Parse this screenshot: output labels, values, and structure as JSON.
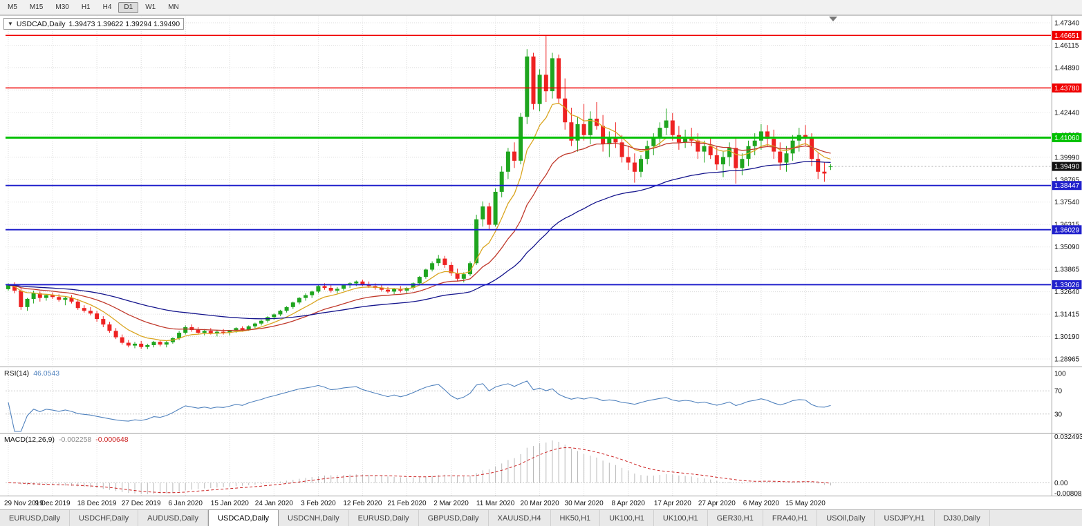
{
  "toolbar": {
    "timeframes": [
      "M5",
      "M15",
      "M30",
      "H1",
      "H4",
      "D1",
      "W1",
      "MN"
    ],
    "active": "D1"
  },
  "chart": {
    "one_click_arrow": "▼",
    "symbol_label": "USDCAD,Daily",
    "ohlc_label": "1.39473 1.39622 1.39294 1.39490"
  },
  "chart_data": {
    "type": "candlestick",
    "symbol": "USDCAD",
    "timeframe": "Daily",
    "title": "USDCAD,Daily",
    "ohlc_current": {
      "open": 1.39473,
      "high": 1.39622,
      "low": 1.39294,
      "close": 1.3949
    },
    "x_label_every": 7,
    "x_labels": [
      "29 Nov 2019",
      "9 Dec 2019",
      "18 Dec 2019",
      "27 Dec 2019",
      "6 Jan 2020",
      "15 Jan 2020",
      "24 Jan 2020",
      "3 Feb 2020",
      "12 Feb 2020",
      "21 Feb 2020",
      "2 Mar 2020",
      "11 Mar 2020",
      "20 Mar 2020",
      "30 Mar 2020",
      "8 Apr 2020",
      "17 Apr 2020",
      "27 Apr 2020",
      "6 May 2020",
      "15 May 2020"
    ],
    "price_axis": {
      "top": 1.4768,
      "bottom": 1.2855,
      "ticks": [
        "1.47340",
        "1.46115",
        "1.44890",
        "1.43665",
        "1.42440",
        "1.41215",
        "1.39990",
        "1.38765",
        "1.37540",
        "1.36315",
        "1.35090",
        "1.33865",
        "1.32640",
        "1.31415",
        "1.30190",
        "1.28965"
      ]
    },
    "hlines": [
      {
        "price": 1.46651,
        "label": "1.46651",
        "color": "#f00000",
        "width": 1.5
      },
      {
        "price": 1.4378,
        "label": "1.43780",
        "color": "#f00000",
        "width": 1.5
      },
      {
        "price": 1.4106,
        "label": "1.41060",
        "color": "#00c000",
        "width": 3
      },
      {
        "price": 1.38447,
        "label": "1.38447",
        "color": "#2020cc",
        "width": 2
      },
      {
        "price": 1.36029,
        "label": "1.36029",
        "color": "#2020cc",
        "width": 2
      },
      {
        "price": 1.33026,
        "label": "1.33026",
        "color": "#2020cc",
        "width": 2
      }
    ],
    "current_price": {
      "value": 1.3949,
      "label": "1.39490",
      "bg": "#111111"
    },
    "moving_averages": [
      {
        "name": "fast",
        "method": "ema",
        "period": 8,
        "color": "#daa520"
      },
      {
        "name": "medium",
        "method": "ema",
        "period": 20,
        "color": "#c0392b"
      },
      {
        "name": "slow",
        "method": "ema",
        "period": 50,
        "color": "#14148c"
      }
    ],
    "rsi": {
      "label_name": "RSI(14)",
      "label_value": "46.0543",
      "period": 14,
      "color": "#4f81bd",
      "levels": [
        70,
        30
      ],
      "axis_labels": [
        "100",
        "70",
        "30"
      ]
    },
    "macd": {
      "label_name": "MACD(12,26,9)",
      "label_value_main": "-0.002258",
      "label_value_signal": "-0.000648",
      "fast": 12,
      "slow": 26,
      "signal": 9,
      "axis_max": 0.032493,
      "axis_min": -0.008086,
      "axis_labels": [
        "0.032493",
        "0.00",
        "-0.008086"
      ],
      "hist_color": "#b8b8b8",
      "signal_color": "#cc2222"
    },
    "colors": {
      "up": "#1fa51f",
      "down": "#ee2222",
      "grid": "#dcdcdc",
      "background": "#ffffff"
    },
    "candles": [
      [
        1.3278,
        1.331,
        1.327,
        1.33
      ],
      [
        1.33,
        1.3315,
        1.3255,
        1.327
      ],
      [
        1.327,
        1.3285,
        1.3165,
        1.318
      ],
      [
        1.318,
        1.323,
        1.316,
        1.3225
      ],
      [
        1.3225,
        1.327,
        1.32,
        1.3255
      ],
      [
        1.3255,
        1.3265,
        1.321,
        1.323
      ],
      [
        1.323,
        1.325,
        1.3215,
        1.3245
      ],
      [
        1.3245,
        1.326,
        1.3225,
        1.3235
      ],
      [
        1.3235,
        1.325,
        1.321,
        1.322
      ],
      [
        1.322,
        1.324,
        1.319,
        1.323
      ],
      [
        1.323,
        1.3245,
        1.32,
        1.321
      ],
      [
        1.321,
        1.3225,
        1.3165,
        1.3175
      ],
      [
        1.3175,
        1.319,
        1.315,
        1.316
      ],
      [
        1.316,
        1.318,
        1.3135,
        1.3145
      ],
      [
        1.3145,
        1.316,
        1.31,
        1.3115
      ],
      [
        1.3115,
        1.313,
        1.307,
        1.3085
      ],
      [
        1.3085,
        1.31,
        1.304,
        1.305
      ],
      [
        1.305,
        1.3065,
        1.3005,
        1.3015
      ],
      [
        1.3015,
        1.303,
        1.2975,
        1.2985
      ],
      [
        1.2985,
        1.3,
        1.296,
        1.297
      ],
      [
        1.297,
        1.299,
        1.2955,
        1.298
      ],
      [
        1.298,
        1.2995,
        1.2952,
        1.2962
      ],
      [
        1.2962,
        1.298,
        1.295,
        1.2972
      ],
      [
        1.2972,
        1.2995,
        1.296,
        1.299
      ],
      [
        1.299,
        1.3,
        1.2965,
        1.2975
      ],
      [
        1.2975,
        1.2995,
        1.296,
        1.2988
      ],
      [
        1.2988,
        1.3015,
        1.298,
        1.301
      ],
      [
        1.301,
        1.305,
        1.3,
        1.304
      ],
      [
        1.304,
        1.308,
        1.303,
        1.307
      ],
      [
        1.307,
        1.3085,
        1.3045,
        1.3055
      ],
      [
        1.3055,
        1.307,
        1.303,
        1.304
      ],
      [
        1.304,
        1.306,
        1.3025,
        1.305
      ],
      [
        1.305,
        1.3065,
        1.303,
        1.3035
      ],
      [
        1.3035,
        1.3055,
        1.302,
        1.3045
      ],
      [
        1.3045,
        1.306,
        1.303,
        1.304
      ],
      [
        1.304,
        1.3055,
        1.3025,
        1.305
      ],
      [
        1.305,
        1.307,
        1.304,
        1.3065
      ],
      [
        1.3065,
        1.3075,
        1.3045,
        1.3055
      ],
      [
        1.3055,
        1.308,
        1.305,
        1.3075
      ],
      [
        1.3075,
        1.3095,
        1.3065,
        1.309
      ],
      [
        1.309,
        1.311,
        1.308,
        1.3105
      ],
      [
        1.3105,
        1.313,
        1.3095,
        1.3125
      ],
      [
        1.3125,
        1.3145,
        1.311,
        1.314
      ],
      [
        1.314,
        1.3165,
        1.313,
        1.316
      ],
      [
        1.316,
        1.3185,
        1.315,
        1.318
      ],
      [
        1.318,
        1.321,
        1.317,
        1.3205
      ],
      [
        1.3205,
        1.3235,
        1.3195,
        1.323
      ],
      [
        1.323,
        1.3255,
        1.3215,
        1.3245
      ],
      [
        1.3245,
        1.327,
        1.323,
        1.3265
      ],
      [
        1.3265,
        1.33,
        1.3255,
        1.3295
      ],
      [
        1.3295,
        1.331,
        1.3275,
        1.3285
      ],
      [
        1.3285,
        1.33,
        1.326,
        1.327
      ],
      [
        1.327,
        1.329,
        1.3255,
        1.328
      ],
      [
        1.328,
        1.3305,
        1.327,
        1.33
      ],
      [
        1.33,
        1.3315,
        1.3285,
        1.331
      ],
      [
        1.331,
        1.3325,
        1.3295,
        1.332
      ],
      [
        1.332,
        1.333,
        1.3295,
        1.3305
      ],
      [
        1.3305,
        1.332,
        1.3285,
        1.3295
      ],
      [
        1.3295,
        1.331,
        1.3275,
        1.3285
      ],
      [
        1.3285,
        1.33,
        1.3265,
        1.3275
      ],
      [
        1.3275,
        1.329,
        1.3255,
        1.3265
      ],
      [
        1.3265,
        1.3285,
        1.325,
        1.328
      ],
      [
        1.328,
        1.3295,
        1.326,
        1.327
      ],
      [
        1.327,
        1.329,
        1.3255,
        1.3285
      ],
      [
        1.3285,
        1.3315,
        1.3275,
        1.331
      ],
      [
        1.331,
        1.335,
        1.33,
        1.3345
      ],
      [
        1.3345,
        1.339,
        1.3335,
        1.3385
      ],
      [
        1.3385,
        1.343,
        1.3375,
        1.342
      ],
      [
        1.342,
        1.3465,
        1.3405,
        1.3445
      ],
      [
        1.3445,
        1.346,
        1.3395,
        1.341
      ],
      [
        1.341,
        1.3425,
        1.335,
        1.3365
      ],
      [
        1.3365,
        1.339,
        1.332,
        1.3335
      ],
      [
        1.3335,
        1.337,
        1.3315,
        1.336
      ],
      [
        1.336,
        1.343,
        1.335,
        1.342
      ],
      [
        1.342,
        1.3685,
        1.341,
        1.366
      ],
      [
        1.366,
        1.3758,
        1.362,
        1.373
      ],
      [
        1.373,
        1.375,
        1.36,
        1.363
      ],
      [
        1.363,
        1.383,
        1.362,
        1.381
      ],
      [
        1.381,
        1.395,
        1.378,
        1.392
      ],
      [
        1.392,
        1.405,
        1.388,
        1.403
      ],
      [
        1.403,
        1.408,
        1.394,
        1.398
      ],
      [
        1.398,
        1.424,
        1.396,
        1.422
      ],
      [
        1.422,
        1.459,
        1.418,
        1.455
      ],
      [
        1.455,
        1.457,
        1.426,
        1.429
      ],
      [
        1.429,
        1.448,
        1.425,
        1.445
      ],
      [
        1.445,
        1.4668,
        1.43,
        1.436
      ],
      [
        1.436,
        1.457,
        1.432,
        1.454
      ],
      [
        1.454,
        1.456,
        1.429,
        1.432
      ],
      [
        1.432,
        1.443,
        1.415,
        1.419
      ],
      [
        1.419,
        1.427,
        1.406,
        1.409
      ],
      [
        1.409,
        1.422,
        1.403,
        1.418
      ],
      [
        1.418,
        1.429,
        1.409,
        1.412
      ],
      [
        1.412,
        1.425,
        1.407,
        1.421
      ],
      [
        1.421,
        1.43,
        1.415,
        1.417
      ],
      [
        1.417,
        1.423,
        1.403,
        1.407
      ],
      [
        1.407,
        1.414,
        1.4,
        1.411
      ],
      [
        1.411,
        1.419,
        1.405,
        1.408
      ],
      [
        1.408,
        1.412,
        1.397,
        1.4
      ],
      [
        1.4,
        1.406,
        1.393,
        1.397
      ],
      [
        1.397,
        1.402,
        1.386,
        1.392
      ],
      [
        1.392,
        1.401,
        1.389,
        1.399
      ],
      [
        1.399,
        1.409,
        1.396,
        1.406
      ],
      [
        1.406,
        1.413,
        1.401,
        1.411
      ],
      [
        1.411,
        1.419,
        1.406,
        1.416
      ],
      [
        1.416,
        1.4265,
        1.412,
        1.42
      ],
      [
        1.42,
        1.424,
        1.409,
        1.412
      ],
      [
        1.412,
        1.417,
        1.404,
        1.408
      ],
      [
        1.408,
        1.415,
        1.405,
        1.411
      ],
      [
        1.411,
        1.416,
        1.406,
        1.409
      ],
      [
        1.409,
        1.413,
        1.399,
        1.403
      ],
      [
        1.403,
        1.409,
        1.397,
        1.406
      ],
      [
        1.406,
        1.411,
        1.399,
        1.401
      ],
      [
        1.401,
        1.406,
        1.393,
        1.396
      ],
      [
        1.396,
        1.403,
        1.389,
        1.4
      ],
      [
        1.4,
        1.408,
        1.395,
        1.405
      ],
      [
        1.405,
        1.411,
        1.3855,
        1.394
      ],
      [
        1.394,
        1.402,
        1.39,
        1.399
      ],
      [
        1.399,
        1.409,
        1.395,
        1.406
      ],
      [
        1.406,
        1.413,
        1.401,
        1.409
      ],
      [
        1.409,
        1.418,
        1.404,
        1.414
      ],
      [
        1.414,
        1.4175,
        1.406,
        1.41
      ],
      [
        1.41,
        1.415,
        1.399,
        1.403
      ],
      [
        1.403,
        1.408,
        1.393,
        1.397
      ],
      [
        1.397,
        1.406,
        1.392,
        1.402
      ],
      [
        1.402,
        1.412,
        1.398,
        1.409
      ],
      [
        1.409,
        1.416,
        1.403,
        1.412
      ],
      [
        1.412,
        1.4175,
        1.406,
        1.411
      ],
      [
        1.411,
        1.413,
        1.395,
        1.399
      ],
      [
        1.399,
        1.402,
        1.388,
        1.392
      ],
      [
        1.392,
        1.397,
        1.3865,
        1.391
      ],
      [
        1.39473,
        1.39622,
        1.39294,
        1.3949
      ]
    ]
  },
  "tabs": {
    "active_index": 3,
    "items": [
      "EURUSD,Daily",
      "USDCHF,Daily",
      "AUDUSD,Daily",
      "USDCAD,Daily",
      "USDCNH,Daily",
      "EURUSD,Daily",
      "GBPUSD,Daily",
      "XAUUSD,H4",
      "HK50,H1",
      "UK100,H1",
      "UK100,H1",
      "GER30,H1",
      "FRA40,H1",
      "USOil,Daily",
      "USDJPY,H1",
      "DJ30,Daily"
    ]
  }
}
